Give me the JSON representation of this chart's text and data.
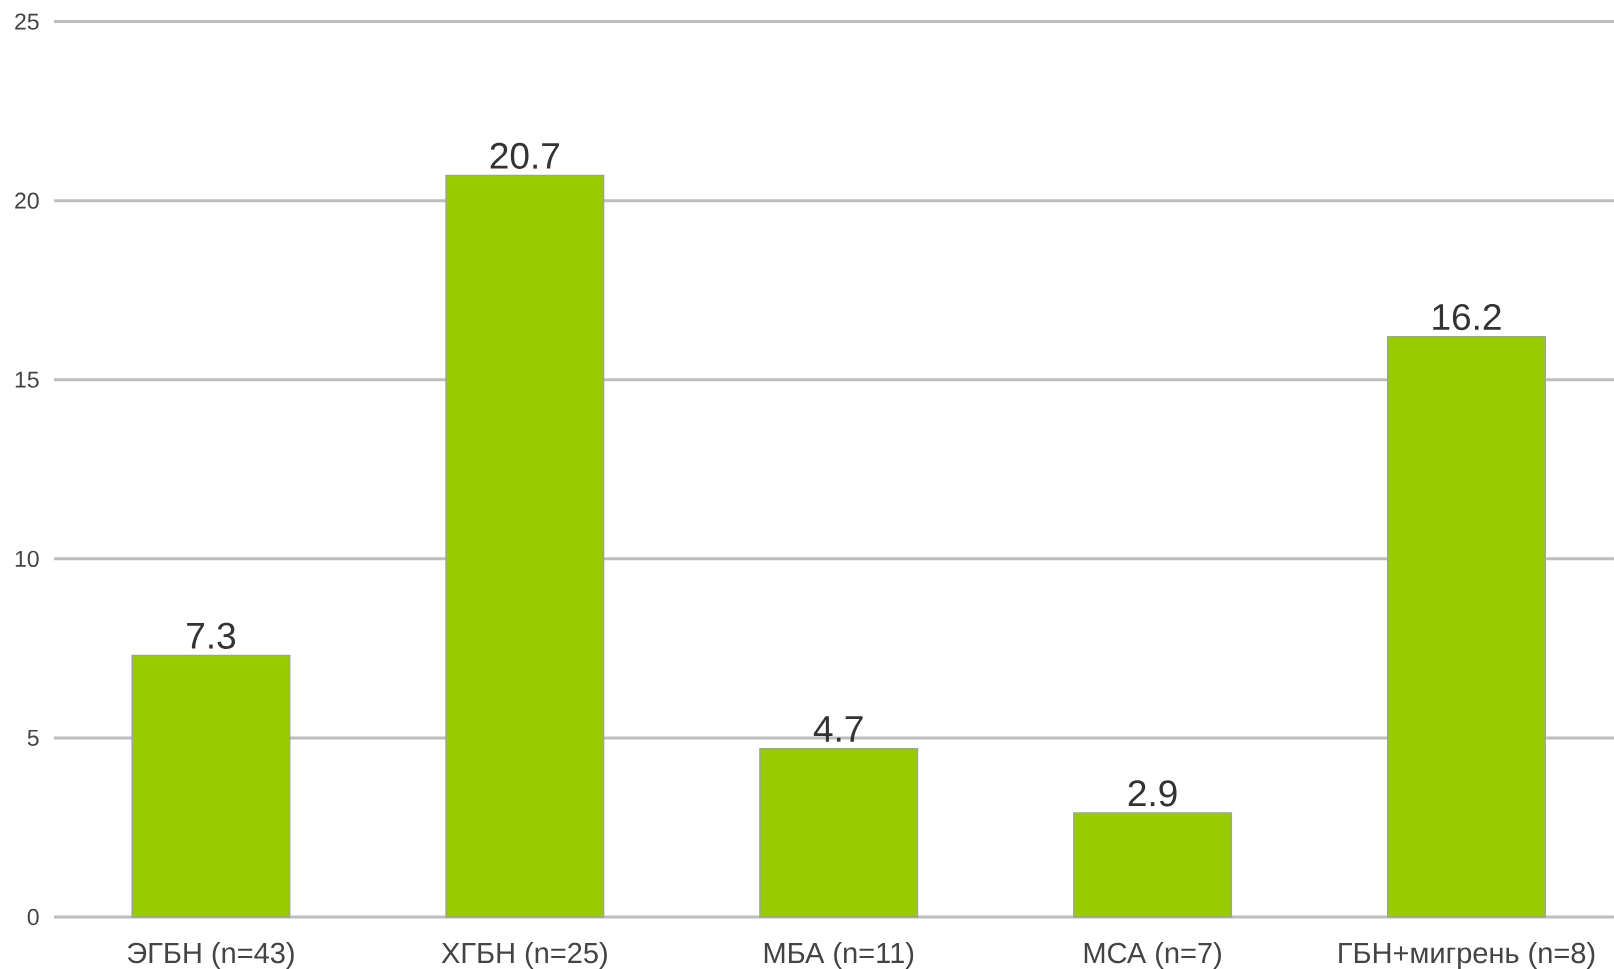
{
  "chart_data": {
    "type": "bar",
    "categories": [
      "ЭГБН (n=43)",
      "ХГБН (n=25)",
      "МБА (n=11)",
      "МСА (n=7)",
      "ГБН+мигрень (n=8)"
    ],
    "values": [
      7.3,
      20.7,
      4.7,
      2.9,
      16.2
    ],
    "color": "#99cc00",
    "ylim": [
      0,
      25
    ],
    "yticks": [
      0,
      5,
      10,
      15,
      20,
      25
    ],
    "grid": "y",
    "data_labels": true
  }
}
